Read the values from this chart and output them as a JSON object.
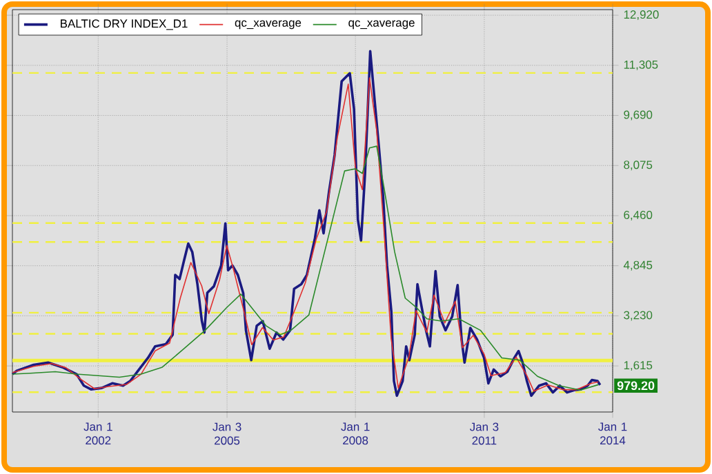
{
  "chart_data": {
    "type": "line",
    "xlim": [
      "2000-01-01",
      "2014-01-01"
    ],
    "xticks": [
      {
        "value": "2002-01-01",
        "label": "Jan 1 2002"
      },
      {
        "value": "2005-01-03",
        "label": "Jan 3 2005"
      },
      {
        "value": "2008-01-01",
        "label": "Jan 1 2008"
      },
      {
        "value": "2011-01-03",
        "label": "Jan 3 2011"
      },
      {
        "value": "2014-01-01",
        "label": "Jan 1 2014"
      }
    ],
    "ylim": [
      130,
      13100
    ],
    "yticks": [
      {
        "value": 1615,
        "label": "1,615"
      },
      {
        "value": 3230,
        "label": "3,230"
      },
      {
        "value": 4845,
        "label": "4,845"
      },
      {
        "value": 6460,
        "label": "6,460"
      },
      {
        "value": 8075,
        "label": "8,075"
      },
      {
        "value": 9690,
        "label": "9,690"
      },
      {
        "value": 11305,
        "label": "11,305"
      },
      {
        "value": 12920,
        "label": "12,920"
      }
    ],
    "grid": true,
    "legend": "top left",
    "marker": "none",
    "line_style": "solid",
    "series": [
      {
        "name": "BALTIC DRY INDEX_D1",
        "color": "#1a1a80",
        "x": [
          "2000-01-01",
          "2000-02-07",
          "2000-07-01",
          "2000-11-01",
          "2001-03-01",
          "2001-07-01",
          "2001-09-01",
          "2001-11-01",
          "2002-02-01",
          "2002-05-01",
          "2002-08-01",
          "2002-10-01",
          "2002-12-01",
          "2003-03-01",
          "2003-05-01",
          "2003-08-01",
          "2003-09-27",
          "2003-10-19",
          "2003-11-25",
          "2004-01-01",
          "2004-02-07",
          "2004-03-13",
          "2004-04-26",
          "2004-06-02",
          "2004-06-24",
          "2004-07-19",
          "2004-09-13",
          "2004-11-14",
          "2004-12-20",
          "2005-01-12",
          "2005-02-18",
          "2005-04-05",
          "2005-05-21",
          "2005-06-13",
          "2005-07-28",
          "2005-09-13",
          "2005-11-03",
          "2006-01-01",
          "2006-02-28",
          "2006-04-26",
          "2006-06-24",
          "2006-07-28",
          "2006-09-27",
          "2006-11-14",
          "2007-01-22",
          "2007-02-28",
          "2007-04-05",
          "2007-05-21",
          "2007-07-08",
          "2007-09-06",
          "2007-11-14",
          "2007-12-20",
          "2008-01-22",
          "2008-02-18",
          "2008-03-24",
          "2008-05-07",
          "2008-06-13",
          "2008-07-19",
          "2008-08-25",
          "2008-09-27",
          "2008-11-03",
          "2008-11-25",
          "2008-12-20",
          "2009-02-07",
          "2009-03-09",
          "2009-04-05",
          "2009-05-21",
          "2009-06-13",
          "2009-07-19",
          "2009-08-25",
          "2009-09-27",
          "2009-11-14",
          "2009-12-20",
          "2010-02-07",
          "2010-04-05",
          "2010-05-21",
          "2010-06-24",
          "2010-07-19",
          "2010-09-06",
          "2010-11-03",
          "2011-01-01",
          "2011-02-07",
          "2011-03-24",
          "2011-05-21",
          "2011-07-19",
          "2011-09-16",
          "2011-10-22",
          "2011-11-25",
          "2012-01-01",
          "2012-02-07",
          "2012-04-15",
          "2012-06-13",
          "2012-08-10",
          "2012-10-08",
          "2012-12-09",
          "2013-02-07",
          "2013-04-05",
          "2013-06-02",
          "2013-07-08",
          "2013-08-25",
          "2013-09-16"
        ],
        "values": [
          1350,
          1460,
          1650,
          1725,
          1575,
          1350,
          980,
          860,
          905,
          1055,
          980,
          1130,
          1430,
          1875,
          2245,
          2320,
          2620,
          4550,
          4415,
          5000,
          5560,
          5290,
          4250,
          3075,
          2690,
          3970,
          4180,
          4850,
          6210,
          4700,
          4850,
          4550,
          3960,
          2765,
          1800,
          2910,
          3060,
          2170,
          2690,
          2465,
          2765,
          4100,
          4250,
          4550,
          5740,
          6630,
          5890,
          7225,
          8415,
          10790,
          11050,
          9900,
          6330,
          5660,
          7820,
          11760,
          10200,
          8710,
          7080,
          4850,
          3360,
          1130,
          655,
          1130,
          2245,
          1800,
          2620,
          4250,
          3510,
          2765,
          2245,
          4670,
          3210,
          2765,
          3210,
          4220,
          2465,
          1725,
          2840,
          2465,
          1875,
          1055,
          1500,
          1280,
          1430,
          1875,
          2095,
          1725,
          1130,
          655,
          980,
          1055,
          760,
          980,
          760,
          835,
          860,
          980,
          1160,
          1130,
          1000
        ]
      },
      {
        "name": "qc_xaverage",
        "color": "#e03030",
        "x": [
          "2000-01-01",
          "2000-07-01",
          "2000-12-01",
          "2001-04-01",
          "2001-08-01",
          "2001-12-01",
          "2002-04-01",
          "2002-09-01",
          "2003-01-01",
          "2003-05-01",
          "2003-09-01",
          "2003-12-01",
          "2004-03-01",
          "2004-06-01",
          "2004-08-01",
          "2004-11-01",
          "2005-01-01",
          "2005-03-01",
          "2005-06-01",
          "2005-08-01",
          "2005-11-01",
          "2006-02-01",
          "2006-05-01",
          "2006-08-01",
          "2006-11-01",
          "2007-02-01",
          "2007-05-01",
          "2007-08-01",
          "2007-11-01",
          "2008-01-01",
          "2008-03-01",
          "2008-05-01",
          "2008-07-01",
          "2008-09-01",
          "2008-11-01",
          "2009-01-01",
          "2009-04-01",
          "2009-06-01",
          "2009-09-01",
          "2009-11-01",
          "2010-02-01",
          "2010-05-01",
          "2010-07-01",
          "2010-10-01",
          "2011-01-01",
          "2011-03-01",
          "2011-07-01",
          "2011-10-01",
          "2012-01-01",
          "2012-03-01",
          "2012-07-01",
          "2012-11-01",
          "2013-03-01",
          "2013-07-01",
          "2013-09-01"
        ],
        "values": [
          1400,
          1600,
          1690,
          1560,
          1200,
          880,
          950,
          1020,
          1350,
          2100,
          2350,
          3800,
          4950,
          4200,
          3300,
          4400,
          5500,
          4700,
          3300,
          2300,
          2850,
          2450,
          2550,
          3400,
          4300,
          5700,
          6600,
          9000,
          10700,
          8000,
          7300,
          10900,
          9200,
          6000,
          2500,
          900,
          1900,
          3400,
          2700,
          3900,
          3000,
          3700,
          2200,
          2600,
          2000,
          1300,
          1400,
          1900,
          1300,
          800,
          1000,
          850,
          850,
          1050,
          1100
        ]
      },
      {
        "name": "qc_xaverage",
        "color": "#2a8a2a",
        "x": [
          "2000-01-01",
          "2000-06-01",
          "2001-01-01",
          "2001-07-01",
          "2002-01-01",
          "2002-07-01",
          "2003-01-01",
          "2003-07-01",
          "2004-01-01",
          "2004-07-01",
          "2005-01-01",
          "2005-05-01",
          "2005-12-01",
          "2006-04-01",
          "2006-07-01",
          "2006-12-01",
          "2007-06-01",
          "2007-10-01",
          "2008-01-01",
          "2008-03-01",
          "2008-05-01",
          "2008-07-01",
          "2008-09-01",
          "2008-12-01",
          "2009-03-01",
          "2009-06-01",
          "2009-09-01",
          "2010-01-01",
          "2010-06-01",
          "2010-12-01",
          "2011-06-01",
          "2011-11-01",
          "2012-04-01",
          "2012-10-01",
          "2013-04-01",
          "2013-09-01"
        ],
        "values": [
          1350,
          1380,
          1430,
          1350,
          1300,
          1250,
          1350,
          1575,
          2170,
          2765,
          3500,
          3930,
          2910,
          2620,
          2765,
          3260,
          6030,
          7900,
          7970,
          7820,
          8640,
          8700,
          7370,
          5290,
          3800,
          3510,
          3135,
          3060,
          3135,
          2765,
          1875,
          1800,
          1280,
          980,
          835,
          1010
        ]
      }
    ],
    "ref_lines": [
      {
        "axis": "y",
        "value": 11060,
        "color": "#f0f040",
        "line_style": "dashed"
      },
      {
        "axis": "y",
        "value": 6220,
        "color": "#f0f040",
        "line_style": "dashed"
      },
      {
        "axis": "y",
        "value": 5610,
        "color": "#f0f040",
        "line_style": "dashed"
      },
      {
        "axis": "y",
        "value": 3330,
        "color": "#f0f040",
        "line_style": "dashed"
      },
      {
        "axis": "y",
        "value": 2650,
        "color": "#f0f040",
        "line_style": "dashed"
      },
      {
        "axis": "y",
        "value": 1790,
        "color": "#f0f040",
        "line_style": "solid"
      },
      {
        "axis": "y",
        "value": 770,
        "color": "#f0f040",
        "line_style": "dashed"
      }
    ],
    "annotations": [
      {
        "text": "979.20",
        "x": "2013-09-16",
        "y": 979.2
      }
    ]
  }
}
